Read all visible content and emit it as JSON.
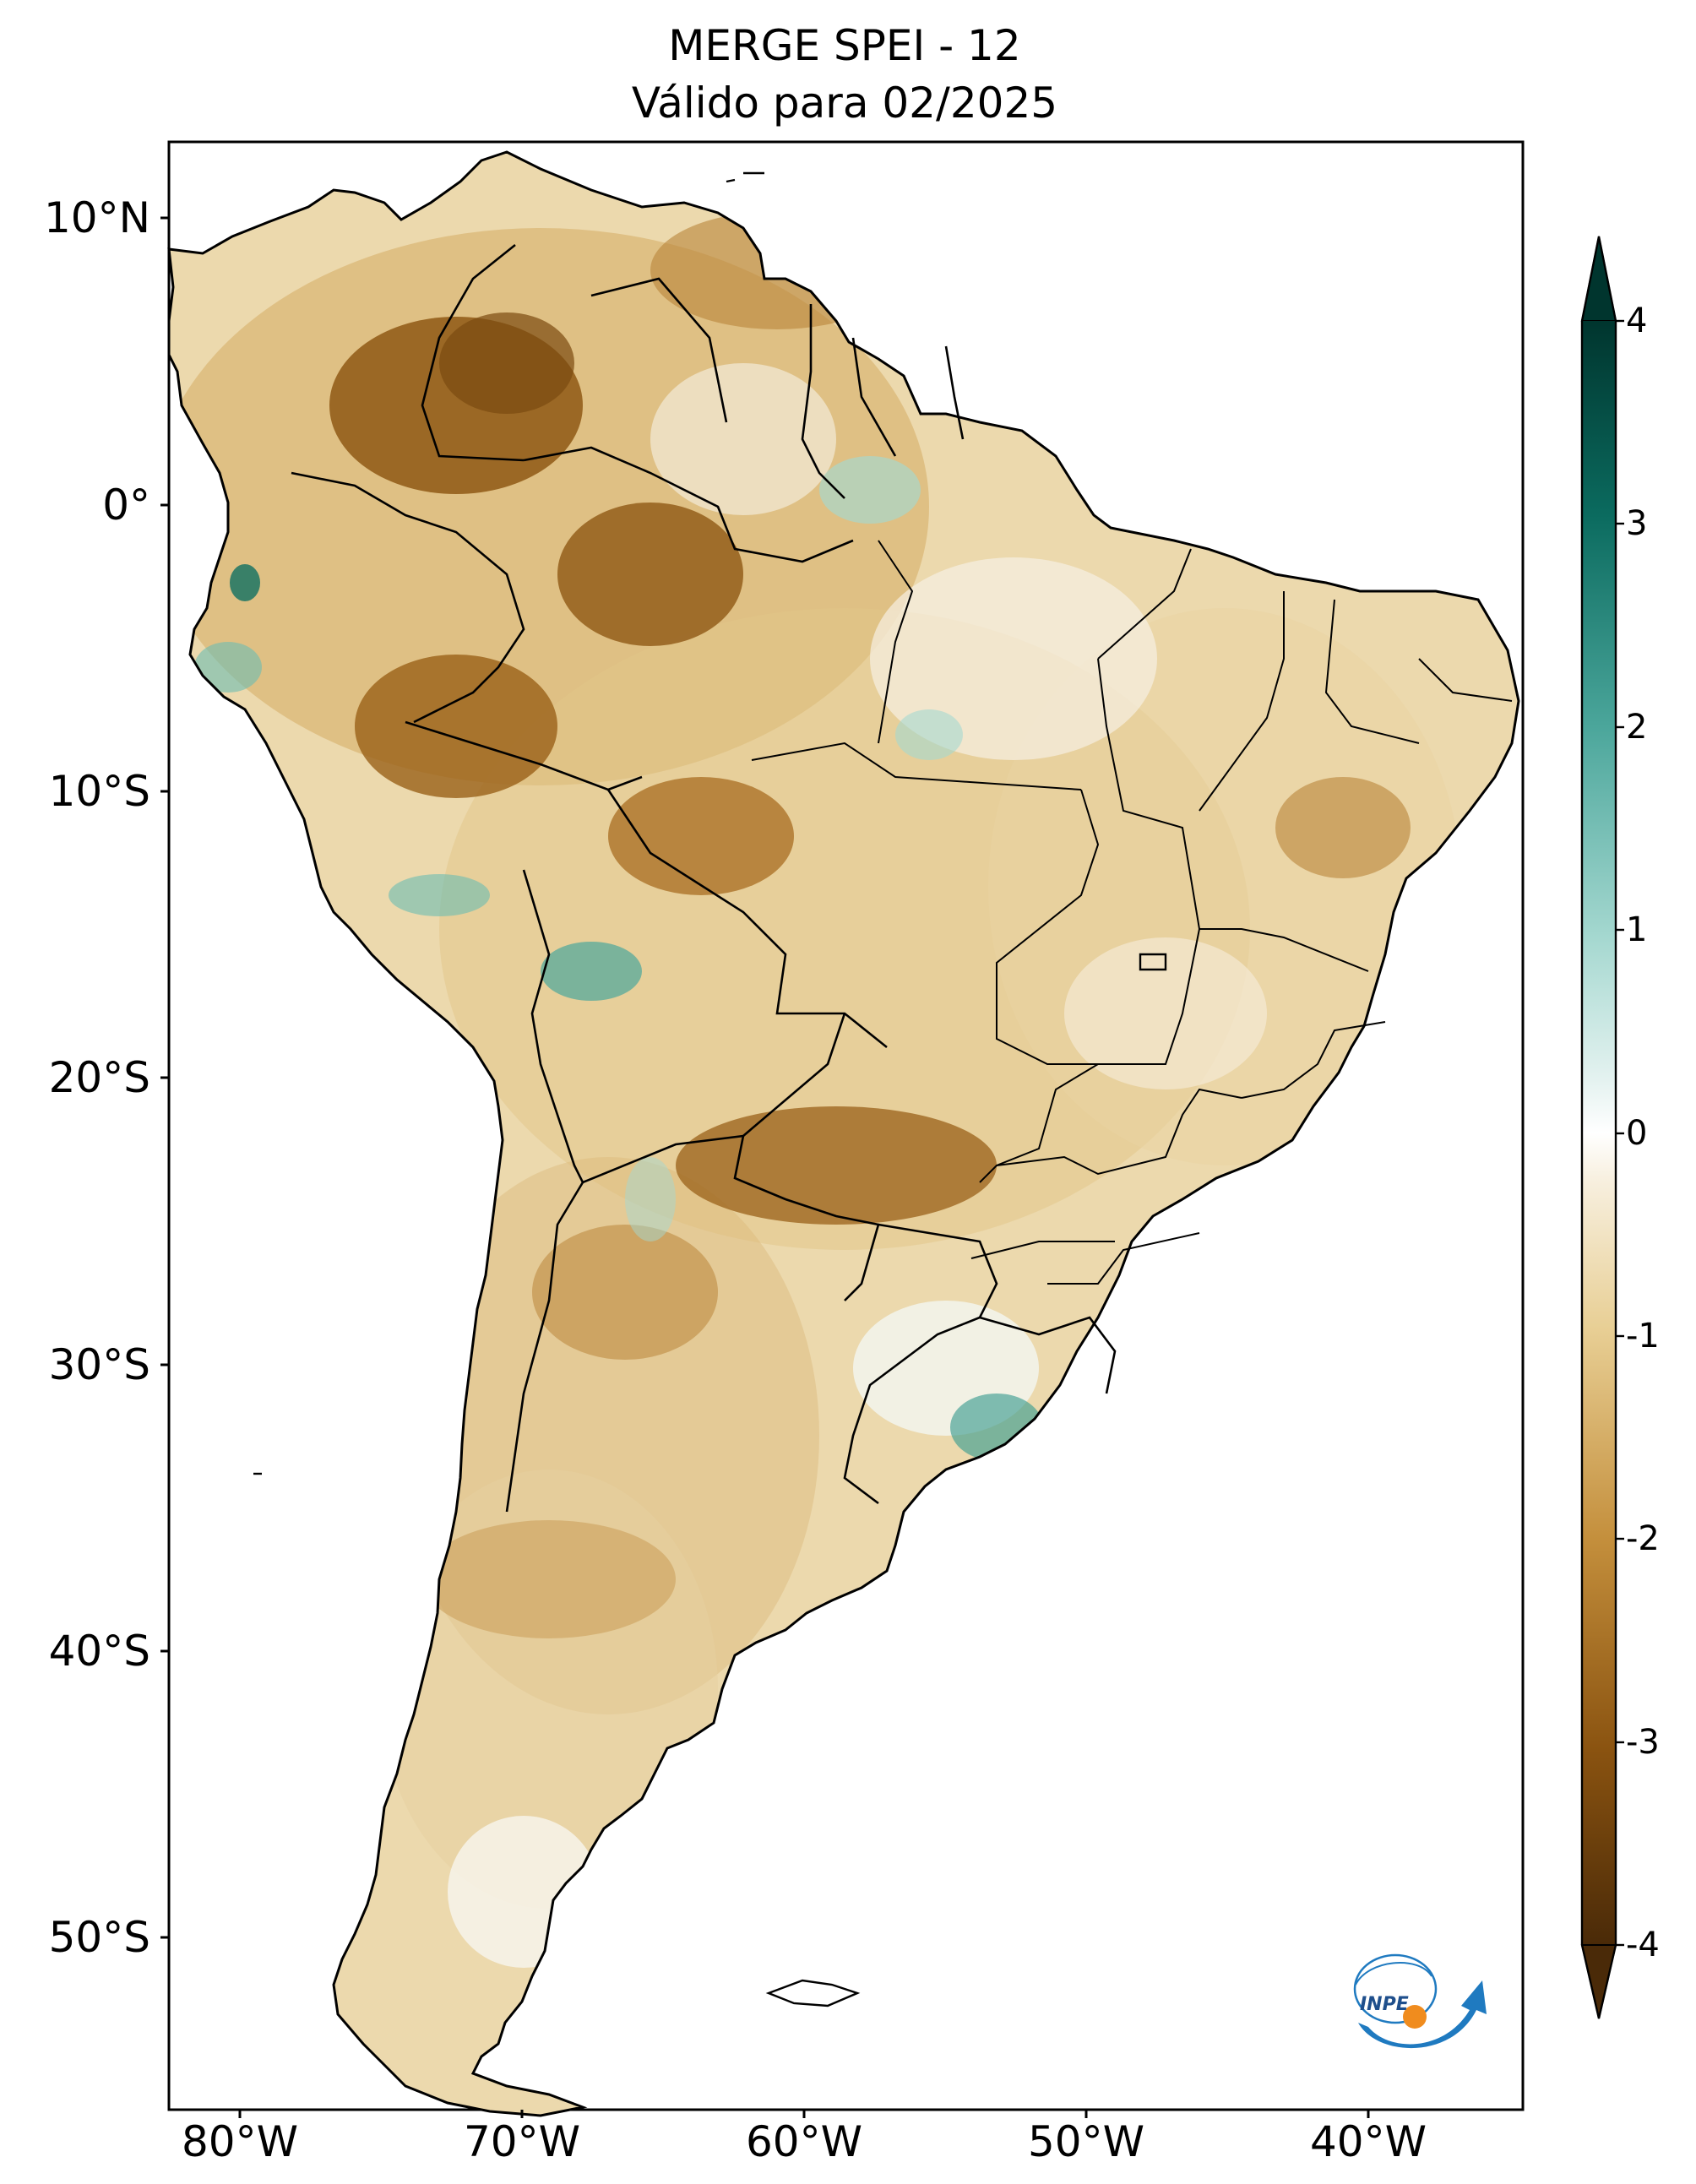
{
  "title": {
    "line1": "MERGE   SPEI - 12",
    "line2": "Válido para 02/2025"
  },
  "map": {
    "latitude_labels": [
      "10°N",
      "0°",
      "10°S",
      "20°S",
      "30°S",
      "40°S",
      "50°S"
    ],
    "longitude_labels": [
      "80°W",
      "70°W",
      "60°W",
      "50°W",
      "40°W"
    ],
    "extent": {
      "lon": [
        -82.5,
        -34.5
      ],
      "lat": [
        -56.5,
        12.5
      ]
    }
  },
  "colorbar": {
    "tick_labels": [
      "4",
      "3",
      "2",
      "1",
      "0",
      "-1",
      "-2",
      "-3",
      "-4"
    ],
    "range": [
      -4,
      4
    ],
    "colormap": "BrBG",
    "extend": "both",
    "colors": {
      "dry_extreme": "#4a2a08",
      "dry": "#a66a1c",
      "neutral": "#ffffff",
      "wet": "#5fb3a9",
      "wet_extreme": "#00352e"
    }
  },
  "logo": {
    "text": "INPE",
    "colors": {
      "blue": "#1f7ac0",
      "orange": "#f08c1e"
    }
  }
}
